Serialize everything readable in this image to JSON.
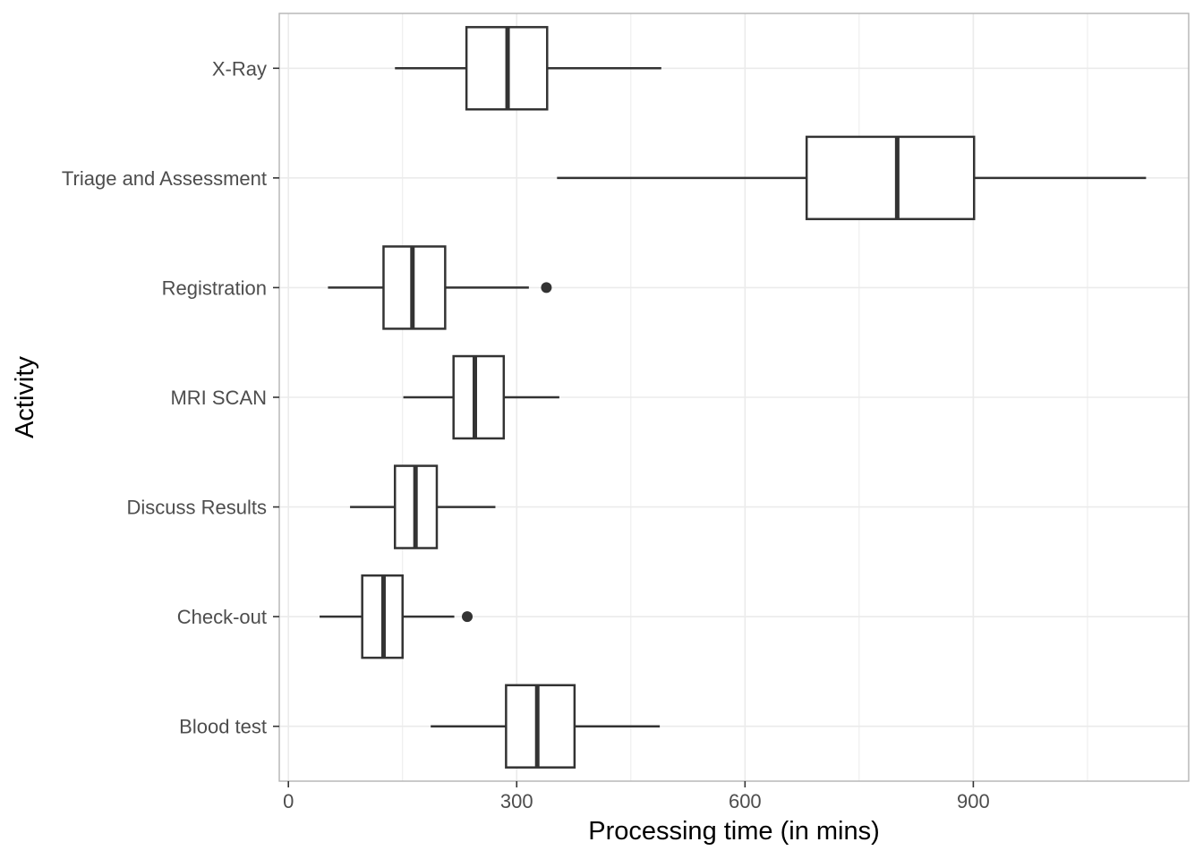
{
  "chart_data": {
    "type": "boxplot",
    "orientation": "horizontal",
    "xlabel": "Processing time (in mins)",
    "ylabel": "Activity",
    "xlim": [
      -12,
      1183
    ],
    "x_ticks": [
      0,
      300,
      600,
      900
    ],
    "x_minor_ticks": [
      150,
      450,
      750,
      1050
    ],
    "grid": true,
    "colors": {
      "box_stroke": "#333333",
      "grid": "#ebebeb",
      "panel_border": "#b3b3b3",
      "tick_label": "#4d4d4d"
    },
    "categories": [
      "X-Ray",
      "Triage and Assessment",
      "Registration",
      "MRI SCAN",
      "Discuss Results",
      "Check-out",
      "Blood test"
    ],
    "boxes": [
      {
        "category": "X-Ray",
        "whisker_low": 140,
        "q1": 234,
        "median": 288,
        "q3": 340,
        "whisker_high": 490,
        "outliers": []
      },
      {
        "category": "Triage and Assessment",
        "whisker_low": 353,
        "q1": 681,
        "median": 800,
        "q3": 901,
        "whisker_high": 1127,
        "outliers": []
      },
      {
        "category": "Registration",
        "whisker_low": 52,
        "q1": 125,
        "median": 163,
        "q3": 206,
        "whisker_high": 316,
        "outliers": [
          339
        ]
      },
      {
        "category": "MRI SCAN",
        "whisker_low": 151,
        "q1": 217,
        "median": 245,
        "q3": 283,
        "whisker_high": 356,
        "outliers": []
      },
      {
        "category": "Discuss Results",
        "whisker_low": 81,
        "q1": 140,
        "median": 167,
        "q3": 195,
        "whisker_high": 272,
        "outliers": []
      },
      {
        "category": "Check-out",
        "whisker_low": 41,
        "q1": 97,
        "median": 125,
        "q3": 150,
        "whisker_high": 218,
        "outliers": [
          235
        ]
      },
      {
        "category": "Blood test",
        "whisker_low": 187,
        "q1": 286,
        "median": 327,
        "q3": 376,
        "whisker_high": 488,
        "outliers": []
      }
    ]
  }
}
